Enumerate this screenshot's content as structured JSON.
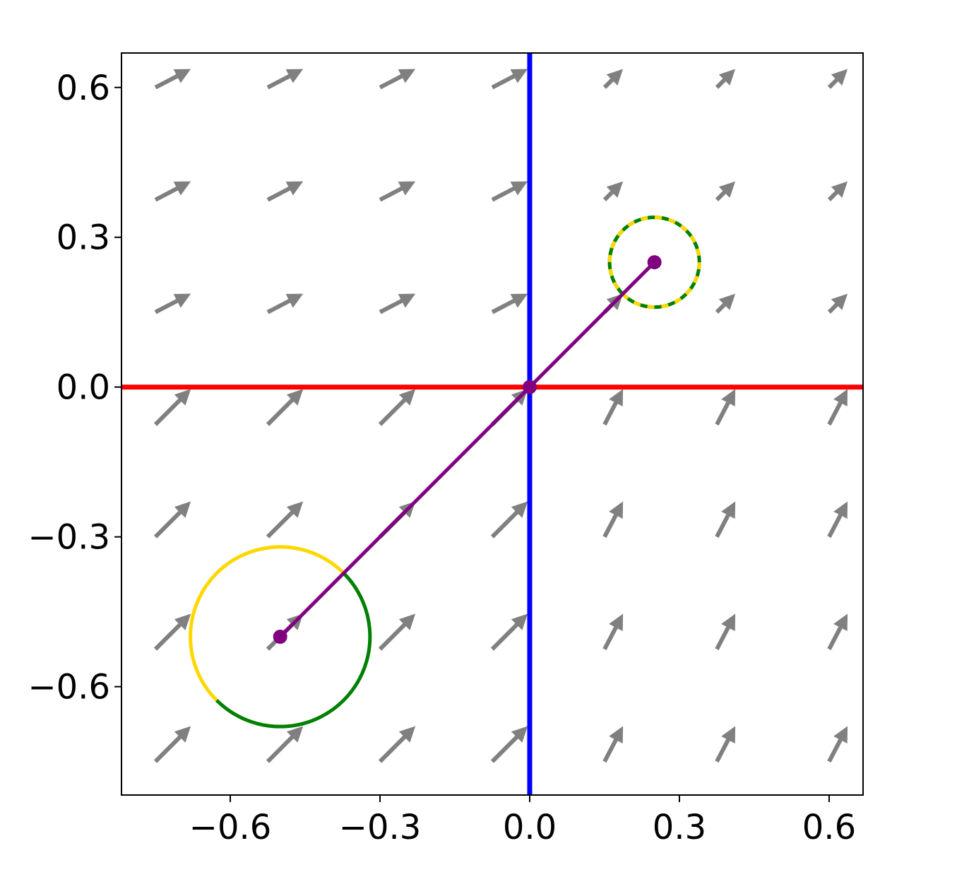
{
  "chart_data": {
    "type": "quiver",
    "xlim": [
      -0.818,
      0.668
    ],
    "ylim": [
      -0.817,
      0.669
    ],
    "xticks": [
      {
        "value": -0.6,
        "label": "−0.6"
      },
      {
        "value": -0.3,
        "label": "−0.3"
      },
      {
        "value": 0,
        "label": "0.0"
      },
      0.3,
      0.6
    ],
    "yticks": [
      {
        "value": -0.6,
        "label": "−0.6"
      },
      {
        "value": -0.3,
        "label": "−0.3"
      },
      {
        "value": 0,
        "label": "0.0"
      },
      0.3,
      0.6
    ],
    "quiver": {
      "color": "#808080",
      "x": [
        -0.75,
        -0.525,
        -0.3,
        -0.075,
        0.15,
        0.375,
        0.6
      ],
      "y": [
        0.6,
        0.375,
        0.15,
        -0.075,
        -0.3,
        -0.525,
        -0.75
      ],
      "u": [
        [
          0.071,
          0.071,
          0.071,
          0.071,
          0.037,
          0.037,
          0.037
        ],
        [
          0.071,
          0.071,
          0.071,
          0.071,
          0.037,
          0.037,
          0.037
        ],
        [
          0.071,
          0.071,
          0.071,
          0.071,
          0.037,
          0.037,
          0.037
        ],
        [
          0.071,
          0.071,
          0.071,
          0.071,
          0.037,
          0.037,
          0.037
        ],
        [
          0.071,
          0.071,
          0.071,
          0.071,
          0.037,
          0.037,
          0.037
        ],
        [
          0.071,
          0.071,
          0.071,
          0.071,
          0.037,
          0.037,
          0.037
        ],
        [
          0.071,
          0.071,
          0.071,
          0.071,
          0.037,
          0.037,
          0.037
        ]
      ],
      "v": [
        [
          0.037,
          0.037,
          0.037,
          0.037,
          0.037,
          0.037,
          0.037
        ],
        [
          0.037,
          0.037,
          0.037,
          0.037,
          0.037,
          0.037,
          0.037
        ],
        [
          0.037,
          0.037,
          0.037,
          0.037,
          0.037,
          0.037,
          0.037
        ],
        [
          0.071,
          0.071,
          0.071,
          0.071,
          0.071,
          0.071,
          0.071
        ],
        [
          0.071,
          0.071,
          0.071,
          0.071,
          0.071,
          0.071,
          0.071
        ],
        [
          0.071,
          0.071,
          0.071,
          0.071,
          0.071,
          0.071,
          0.071
        ],
        [
          0.071,
          0.071,
          0.071,
          0.071,
          0.071,
          0.071,
          0.071
        ]
      ]
    },
    "vline": {
      "x": 0,
      "color": "#0000ff"
    },
    "hline": {
      "y": 0,
      "color": "#ff0000"
    },
    "circles": [
      {
        "cx": -0.5,
        "cy": -0.5,
        "r": 0.18,
        "arcs": [
          {
            "color": "#ffd700",
            "from": 45,
            "to": 225
          },
          {
            "color": "#008000",
            "from": 225,
            "to": 405
          }
        ]
      },
      {
        "cx": 0.25,
        "cy": 0.25,
        "r": 0.09,
        "dashed": true,
        "colors": [
          "#008000",
          "#ffd700"
        ]
      }
    ],
    "path": {
      "color": "#800080",
      "x": [
        -0.5,
        0,
        0.25
      ],
      "y": [
        -0.5,
        0,
        0.25
      ]
    }
  }
}
